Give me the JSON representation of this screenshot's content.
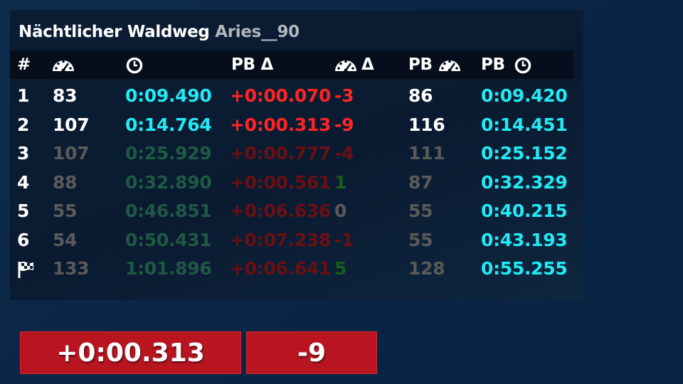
{
  "title": {
    "track": "Nächtlicher Waldweg",
    "player": "Aries__90"
  },
  "headers": {
    "num": "#",
    "speed_icon": "speedometer-icon",
    "time_icon": "clock-icon",
    "pb_delta": "PB Δ",
    "speed_delta_icon": "speedometer-icon",
    "speed_delta": "Δ",
    "pb_speed": "PB",
    "pb_speed_icon": "speedometer-icon",
    "pb_time": "PB",
    "pb_time_icon": "clock-icon"
  },
  "rows": [
    {
      "cp": "1",
      "speed": "83",
      "time": "0:09.490",
      "pb_delta": "+0:00.070",
      "speed_delta": "-3",
      "pb_speed": "86",
      "pb_time": "0:09.420"
    },
    {
      "cp": "2",
      "speed": "107",
      "time": "0:14.764",
      "pb_delta": "+0:00.313",
      "speed_delta": "-9",
      "pb_speed": "116",
      "pb_time": "0:14.451"
    },
    {
      "cp": "3",
      "speed": "107",
      "time": "0:25.929",
      "pb_delta": "+0:00.777",
      "speed_delta": "-4",
      "pb_speed": "111",
      "pb_time": "0:25.152"
    },
    {
      "cp": "4",
      "speed": "88",
      "time": "0:32.890",
      "pb_delta": "+0:00.561",
      "speed_delta": "1",
      "pb_speed": "87",
      "pb_time": "0:32.329"
    },
    {
      "cp": "5",
      "speed": "55",
      "time": "0:46.851",
      "pb_delta": "+0:06.636",
      "speed_delta": "0",
      "pb_speed": "55",
      "pb_time": "0:40.215"
    },
    {
      "cp": "6",
      "speed": "54",
      "time": "0:50.431",
      "pb_delta": "+0:07.238",
      "speed_delta": "-1",
      "pb_speed": "55",
      "pb_time": "0:43.193"
    },
    {
      "cp": "finish-flag-icon",
      "speed": "133",
      "time": "1:01.896",
      "pb_delta": "+0:06.641",
      "speed_delta": "5",
      "pb_speed": "128",
      "pb_time": "0:55.255"
    }
  ],
  "bottom": {
    "time_delta": "+0:00.313",
    "speed_delta": "-9"
  },
  "colors": {
    "background": "#0a2644",
    "panel": "#0a1b31",
    "header_bar": "#050e1a",
    "cyan": "#22eaf4",
    "red": "#ff2424",
    "button_red": "#b81521"
  }
}
